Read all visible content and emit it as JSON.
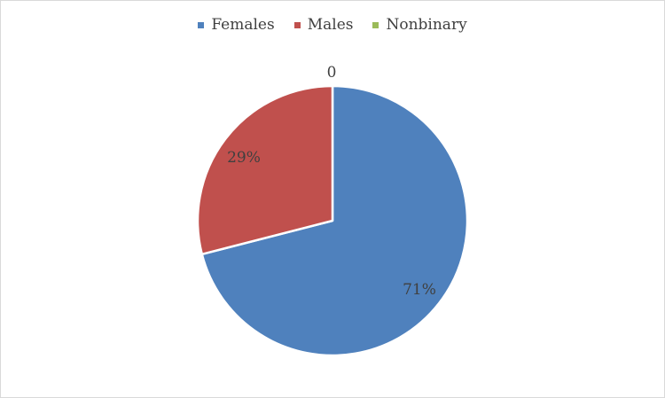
{
  "chart_data": {
    "type": "pie",
    "categories": [
      "Females",
      "Males",
      "Nonbinary"
    ],
    "values": [
      71,
      29,
      0
    ],
    "data_labels": [
      "71%",
      "29%",
      "0"
    ],
    "colors": [
      "#4f81bd",
      "#c0504d",
      "#9bbb59"
    ],
    "legend_position": "top"
  }
}
